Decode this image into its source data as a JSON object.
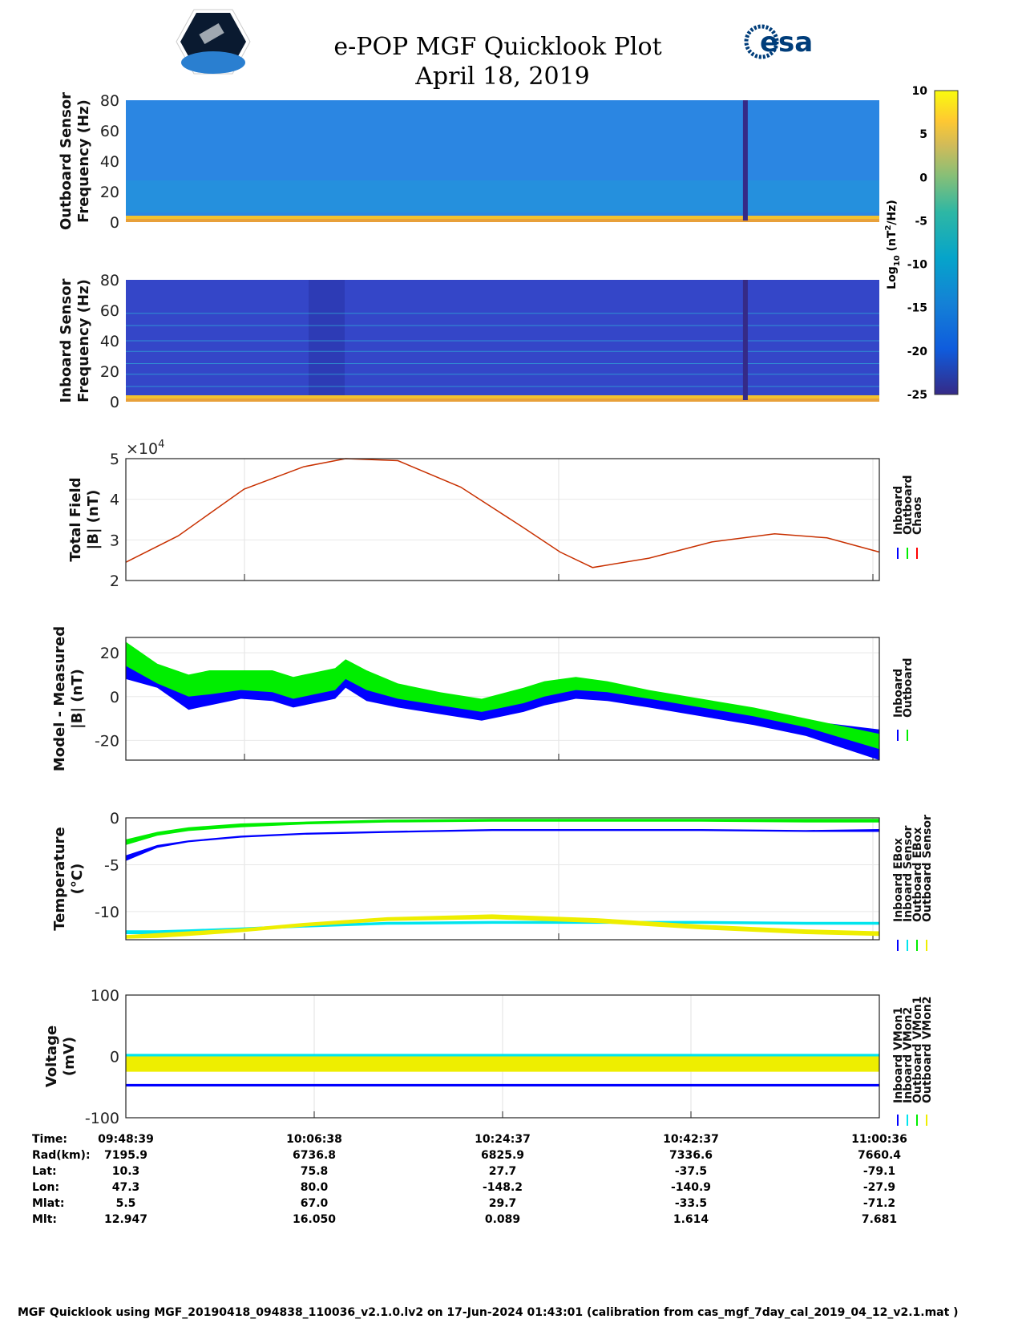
{
  "header": {
    "title": "e-POP MGF Quicklook Plot",
    "date": "April 18, 2019",
    "left_logo": "CASSIOPE",
    "right_logo": "esa"
  },
  "colorbar": {
    "label_prefix": "Log",
    "label_sub": "10",
    "label_units": "(nT",
    "label_sup": "2",
    "label_end": "/Hz)",
    "ticks": [
      "10",
      "5",
      "0",
      "-5",
      "-10",
      "-15",
      "-20",
      "-25"
    ],
    "range": [
      -25,
      10
    ]
  },
  "time_axis": {
    "start": "09:48:39",
    "end": "11:00:36",
    "duration_min": 72
  },
  "chart_data": [
    {
      "type": "heatmap",
      "id": "outboard-spectrogram",
      "ylabel": [
        "Outboard Sensor",
        "Frequency (Hz)"
      ],
      "ylim": [
        0,
        80
      ],
      "yticks": [
        "80",
        "60",
        "40",
        "20",
        "0"
      ],
      "background_log_psd": -17,
      "low_freq_log_psd": 3,
      "gap_time_min": 59.2
    },
    {
      "type": "heatmap",
      "id": "inboard-spectrogram",
      "ylabel": [
        "Inboard Sensor",
        "Frequency (Hz)"
      ],
      "ylim": [
        0,
        80
      ],
      "yticks": [
        "80",
        "60",
        "40",
        "20",
        "0"
      ],
      "background_log_psd": -22,
      "low_freq_log_psd": 3,
      "tone_lines_hz": [
        10,
        18,
        25,
        33,
        40,
        50,
        58
      ],
      "gap_time_min": 59.2
    },
    {
      "type": "line",
      "id": "total-field",
      "ylabel": [
        "Total Field",
        "|B| (nT)"
      ],
      "ylim": [
        2,
        5
      ],
      "yticks": [
        "5",
        "4",
        "3",
        "2"
      ],
      "multiplier": "×10",
      "multiplier_exp": "4",
      "legend": [
        "Inboard",
        "Outboard",
        "Chaos"
      ],
      "legend_colors": [
        "#0000ff",
        "#00ee00",
        "#ff0000"
      ],
      "x": [
        0,
        5,
        11.3,
        17,
        21,
        26,
        32,
        38,
        41.5,
        44.6,
        50,
        56,
        62,
        67,
        72
      ],
      "series": [
        {
          "name": "Chaos",
          "color": "#c83000",
          "values": [
            2.45,
            3.1,
            4.25,
            4.8,
            5.0,
            4.95,
            4.3,
            3.3,
            2.7,
            2.32,
            2.55,
            2.95,
            3.15,
            3.05,
            2.7
          ]
        }
      ]
    },
    {
      "type": "area",
      "id": "model-measured",
      "ylabel": [
        "Model - Measured",
        "|B| (nT)"
      ],
      "ylim": [
        -29,
        27
      ],
      "yticks": [
        "20",
        "0",
        "-20"
      ],
      "ytick_values": [
        20,
        0,
        -20
      ],
      "legend": [
        "Inboard",
        "Outboard"
      ],
      "legend_colors": [
        "#0000ff",
        "#00ee00"
      ],
      "x": [
        0,
        3,
        6,
        8,
        11,
        14,
        16,
        18,
        20,
        21,
        23,
        26,
        30,
        34,
        38,
        40,
        43,
        46,
        50,
        55,
        60,
        65,
        72
      ],
      "series": [
        {
          "name": "Inboard",
          "color": "#0000ff",
          "low": [
            8,
            4,
            -6,
            -4,
            -1,
            -2,
            -5,
            -3,
            -1,
            4,
            -2,
            -5,
            -8,
            -11,
            -7,
            -4,
            -1,
            -2,
            -5,
            -9,
            -13,
            -18,
            -29
          ],
          "high": [
            20,
            12,
            7,
            10,
            10,
            10,
            6,
            8,
            10,
            12,
            10,
            4,
            -1,
            -3,
            2,
            5,
            8,
            6,
            2,
            -2,
            -6,
            -11,
            -15
          ]
        },
        {
          "name": "Outboard",
          "color": "#00ee00",
          "low": [
            14,
            6,
            0,
            1,
            3,
            2,
            -1,
            1,
            3,
            8,
            3,
            -1,
            -4,
            -7,
            -3,
            0,
            3,
            2,
            -1,
            -5,
            -9,
            -14,
            -24
          ],
          "high": [
            25,
            15,
            10,
            12,
            12,
            12,
            9,
            11,
            13,
            17,
            12,
            6,
            2,
            -1,
            4,
            7,
            9,
            7,
            3,
            -1,
            -5,
            -10,
            -17
          ]
        }
      ]
    },
    {
      "type": "area",
      "id": "temperature",
      "ylabel": [
        "Temperature",
        "(°C)"
      ],
      "ylim": [
        -13,
        0
      ],
      "yticks": [
        "0",
        "-5",
        "-10"
      ],
      "ytick_values": [
        0,
        -5,
        -10
      ],
      "legend": [
        "Inboard EBox",
        "Inboard Sensor",
        "Outboard EBox",
        "Outboard Sensor"
      ],
      "legend_colors": [
        "#0000ff",
        "#00e5ee",
        "#00ee00",
        "#eeee00"
      ],
      "x": [
        0,
        3,
        6,
        11,
        17,
        25,
        35,
        45,
        55,
        65,
        72
      ],
      "series": [
        {
          "name": "Inboard EBox",
          "color": "#0000ff",
          "low": [
            -4.6,
            -3.2,
            -2.6,
            -2.1,
            -1.8,
            -1.6,
            -1.4,
            -1.4,
            -1.4,
            -1.5,
            -1.5
          ],
          "high": [
            -4.0,
            -2.9,
            -2.4,
            -1.9,
            -1.6,
            -1.4,
            -1.2,
            -1.2,
            -1.2,
            -1.3,
            -1.2
          ]
        },
        {
          "name": "Inboard Sensor",
          "color": "#00e5ee",
          "low": [
            -12.4,
            -12.4,
            -12.3,
            -12.0,
            -11.7,
            -11.4,
            -11.3,
            -11.3,
            -11.3,
            -11.4,
            -11.4
          ],
          "high": [
            -12.0,
            -12.0,
            -11.9,
            -11.7,
            -11.4,
            -11.1,
            -11.0,
            -11.0,
            -11.0,
            -11.1,
            -11.1
          ]
        },
        {
          "name": "Outboard EBox",
          "color": "#00ee00",
          "low": [
            -2.9,
            -1.9,
            -1.4,
            -1.0,
            -0.7,
            -0.5,
            -0.4,
            -0.4,
            -0.4,
            -0.5,
            -0.5
          ],
          "high": [
            -2.3,
            -1.5,
            -1.0,
            -0.6,
            -0.4,
            -0.2,
            -0.1,
            -0.1,
            -0.1,
            -0.1,
            -0.1
          ]
        },
        {
          "name": "Outboard Sensor",
          "color": "#eeee00",
          "low": [
            -12.9,
            -12.8,
            -12.6,
            -12.2,
            -11.6,
            -11.0,
            -10.8,
            -11.2,
            -11.9,
            -12.4,
            -12.6
          ],
          "high": [
            -12.5,
            -12.3,
            -12.1,
            -11.8,
            -11.2,
            -10.6,
            -10.3,
            -10.7,
            -11.4,
            -11.9,
            -12.1
          ]
        }
      ]
    },
    {
      "type": "area",
      "id": "voltage",
      "ylabel": [
        "Voltage",
        "(mV)"
      ],
      "ylim": [
        -100,
        100
      ],
      "yticks": [
        "100",
        "0",
        "-100"
      ],
      "ytick_values": [
        100,
        0,
        -100
      ],
      "legend": [
        "Inboard VMon1",
        "Inboard VMon2",
        "Outboard VMon1",
        "Outboard VMon2"
      ],
      "legend_colors": [
        "#0000ff",
        "#00e5ee",
        "#00ee00",
        "#eeee00"
      ],
      "x": [
        0,
        72
      ],
      "series": [
        {
          "name": "Inboard VMon2",
          "color": "#00e5ee",
          "low": [
            -2,
            -2
          ],
          "high": [
            4,
            4
          ]
        },
        {
          "name": "Outboard VMon2",
          "color": "#eeee00",
          "low": [
            -25,
            -25
          ],
          "high": [
            0,
            0
          ]
        },
        {
          "name": "Inboard VMon1",
          "color": "#0000ff",
          "low": [
            -49,
            -49
          ],
          "high": [
            -45,
            -45
          ]
        }
      ]
    }
  ],
  "ephemeris": {
    "labels": [
      "Time:",
      "Rad(km):",
      "Lat:",
      "Lon:",
      "Mlat:",
      "Mlt:"
    ],
    "columns": [
      [
        "09:48:39",
        "7195.9",
        "10.3",
        "47.3",
        "5.5",
        "12.947"
      ],
      [
        "10:06:38",
        "6736.8",
        "75.8",
        "80.0",
        "67.0",
        "16.050"
      ],
      [
        "10:24:37",
        "6825.9",
        "27.7",
        "-148.2",
        "29.7",
        "0.089"
      ],
      [
        "10:42:37",
        "7336.6",
        "-37.5",
        "-140.9",
        "-33.5",
        "1.614"
      ],
      [
        "11:00:36",
        "7660.4",
        "-79.1",
        "-27.9",
        "-71.2",
        "7.681"
      ]
    ]
  },
  "footer": "MGF Quicklook using MGF_20190418_094838_110036_v2.1.0.lv2 on 17-Jun-2024 01:43:01 (calibration from cas_mgf_7day_cal_2019_04_12_v2.1.mat )"
}
